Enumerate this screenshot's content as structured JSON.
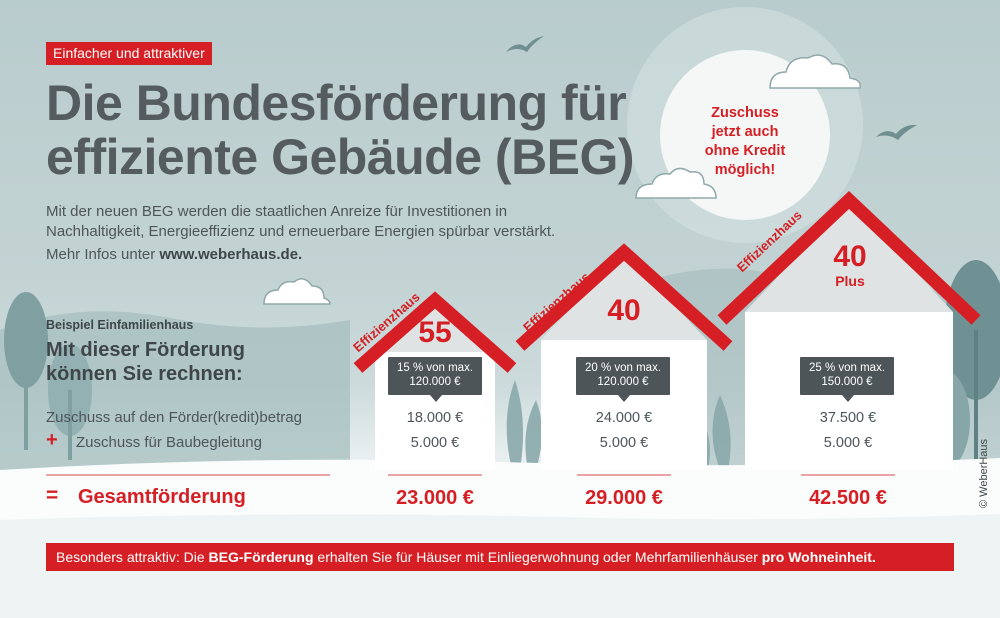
{
  "tag": "Einfacher und attraktiver",
  "title": {
    "line1": "Die Bundesförderung für",
    "line2": "effiziente Gebäude (BEG)"
  },
  "lead": "Mit der neuen BEG werden die staatlichen Anreize für Investitionen in Nachhaltigkeit, Energieeffizienz und erneuerbare Energien spürbar verstärkt.",
  "more_info": {
    "prefix": "Mehr Infos unter ",
    "url": "www.weberhaus.de."
  },
  "sun_text": {
    "line1": "Zuschuss",
    "line2": "jetzt auch",
    "line3": "ohne Kredit",
    "line4": "möglich!"
  },
  "example": {
    "small": "Beispiel Einfamilienhaus",
    "headline": "Mit dieser Förderung können Sie rechnen:",
    "row1": "Zuschuss auf den Förder(kredit)betrag",
    "plus": "+",
    "row2": "Zuschuss für Baubegleitung",
    "equals": "=",
    "total_label": "Gesamtförderung"
  },
  "houses": [
    {
      "roof_label": "Effizienzhaus",
      "number": "55",
      "bubble_line1": "15 % von max.",
      "bubble_line2": "120.000 €",
      "grant": "18.000 €",
      "supervision": "5.000 €",
      "total": "23.000 €"
    },
    {
      "roof_label": "Effizienzhaus",
      "number": "40",
      "bubble_line1": "20 % von max.",
      "bubble_line2": "120.000 €",
      "grant": "24.000 €",
      "supervision": "5.000 €",
      "total": "29.000 €"
    },
    {
      "roof_label": "Effizienzhaus",
      "number": "40",
      "number_sub": "Plus",
      "bubble_line1": "25 % von max.",
      "bubble_line2": "150.000 €",
      "grant": "37.500 €",
      "supervision": "5.000 €",
      "total": "42.500 €"
    }
  ],
  "footer": {
    "p1": "Besonders attraktiv: Die ",
    "b1": "BEG-Förderung",
    "p2": " erhalten Sie für Häuser mit Einliegerwohnung oder Mehrfamilienhäuser ",
    "b2": "pro Wohneinheit."
  },
  "copyright": "© WeberHaus",
  "colors": {
    "accent": "#d51f24",
    "text": "#4d5559",
    "sky": "#b9cccd"
  },
  "icons": [
    "bird-icon",
    "cloud-icon",
    "sun-icon",
    "tree-icon",
    "house-icon"
  ]
}
